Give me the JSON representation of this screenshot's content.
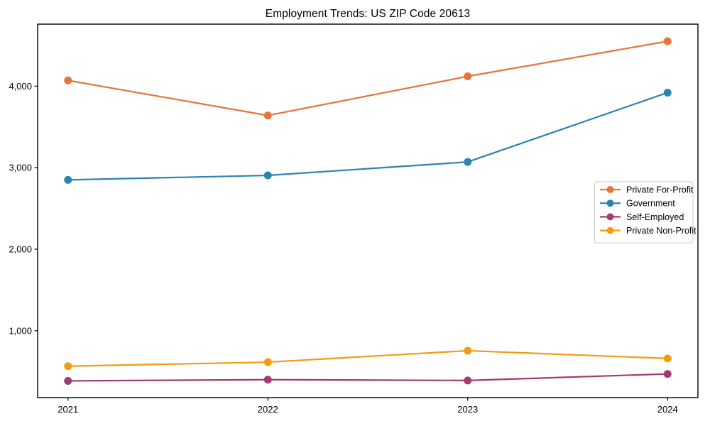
{
  "chart_data": {
    "type": "line",
    "title": "Employment Trends: US ZIP Code 20613",
    "categories": [
      "2021",
      "2022",
      "2023",
      "2024"
    ],
    "series": [
      {
        "name": "Private For-Profit",
        "color": "#E8743A",
        "values": [
          4070,
          3640,
          4120,
          4550
        ]
      },
      {
        "name": "Government",
        "color": "#2B84AE",
        "values": [
          2850,
          2905,
          3070,
          3920
        ]
      },
      {
        "name": "Self-Employed",
        "color": "#A23B72",
        "values": [
          385,
          400,
          390,
          470
        ]
      },
      {
        "name": "Private Non-Profit",
        "color": "#F29B13",
        "values": [
          565,
          615,
          755,
          660
        ]
      }
    ],
    "xlabel": "",
    "ylabel": "",
    "ylim": [
      180,
      4760
    ],
    "yticks": [
      1000,
      2000,
      3000,
      4000
    ],
    "ytick_labels": [
      "1,000",
      "2,000",
      "3,000",
      "4,000"
    ],
    "grid": false,
    "legend_position": "right-middle",
    "marker": "circle",
    "axis_color": "#000000",
    "text_color": "#000000",
    "legend_border_color": "#cccccc",
    "legend_background": "#ffffff",
    "background": "#ffffff"
  }
}
